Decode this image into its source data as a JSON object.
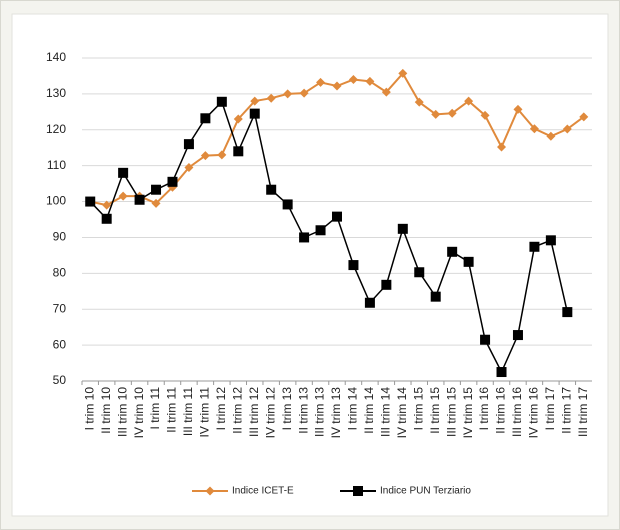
{
  "chart_data": {
    "type": "line",
    "categories": [
      "I trim 10",
      "II trim 10",
      "III trim 10",
      "IV trim 10",
      "I trim 11",
      "II trim 11",
      "III trim 11",
      "IV trim 11",
      "I trim 12",
      "II trim 12",
      "III trim 12",
      "IV trim 12",
      "I trim 13",
      "II trim 13",
      "III trim 13",
      "IV trim 13",
      "I trim 14",
      "II trim 14",
      "III trim 14",
      "IV trim 14",
      "I trim 15",
      "II trim 15",
      "III trim 15",
      "IV trim 15",
      "I trim 16",
      "II trim 16",
      "III trim 16",
      "IV trim 16",
      "I trim 17",
      "II trim 17",
      "III trim 17"
    ],
    "series": [
      {
        "name": "Indice ICET-E",
        "color": "#e08a3c",
        "marker": "diamond",
        "values": [
          100,
          99,
          101.5,
          101.5,
          99.5,
          104,
          109.5,
          112.8,
          113,
          123,
          128,
          128.8,
          130,
          130.2,
          133.2,
          132.2,
          134,
          133.5,
          130.5,
          135.7,
          127.7,
          124.3,
          124.6,
          128,
          124,
          115.2,
          125.7,
          120.3,
          118.2,
          120.2,
          123.6
        ]
      },
      {
        "name": "Indice PUN Terziario",
        "color": "#000000",
        "marker": "square",
        "values": [
          100,
          95.2,
          108,
          100.5,
          103.3,
          105.5,
          116,
          123.2,
          127.8,
          114,
          124.5,
          103.3,
          99.2,
          90,
          92,
          95.8,
          82.3,
          71.8,
          76.8,
          92.4,
          80.3,
          73.5,
          86,
          83.2,
          61.5,
          52.5,
          62.8,
          87.4,
          89.2,
          69.2,
          null
        ]
      }
    ],
    "ylim": [
      50,
      140
    ],
    "yticks": [
      50,
      60,
      70,
      80,
      90,
      100,
      110,
      120,
      130,
      140
    ],
    "grid": true,
    "legend": "bottom"
  }
}
